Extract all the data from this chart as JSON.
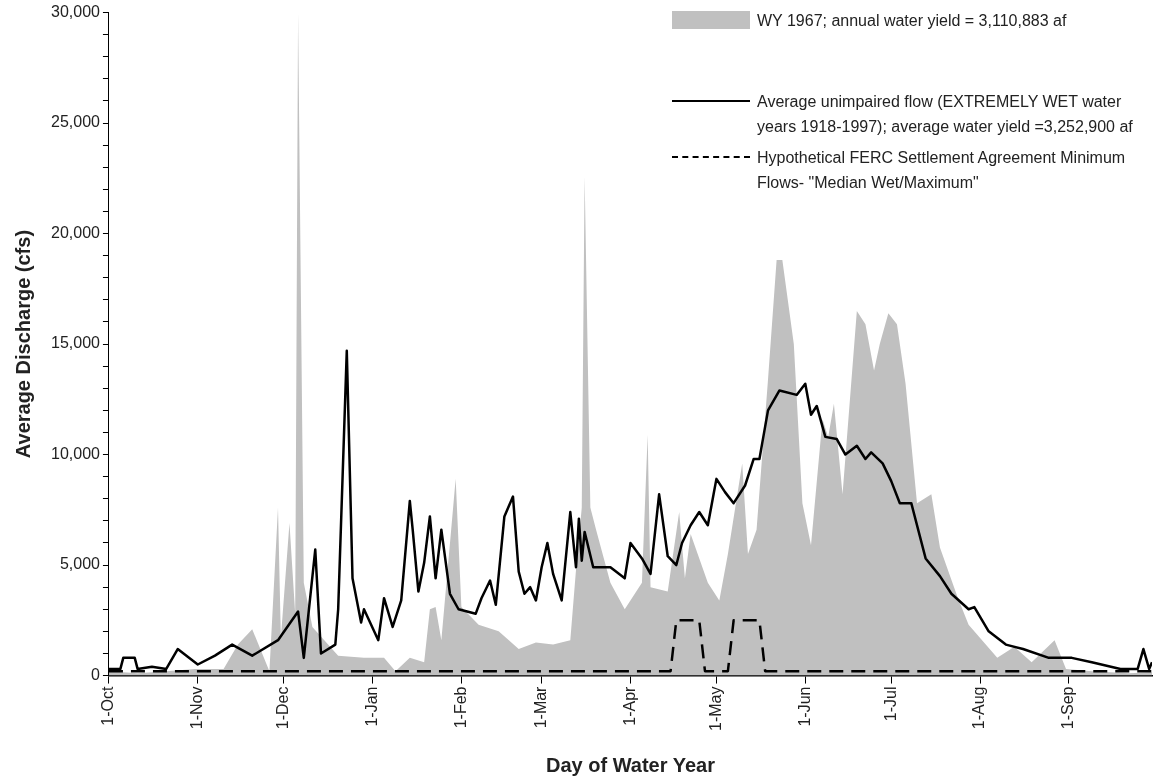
{
  "chart_data": {
    "type": "line",
    "xlabel": "Day of Water Year",
    "ylabel": "Average Discharge (cfs)",
    "xlim": [
      "1966-10-01",
      "1967-09-30"
    ],
    "xticks": [
      {
        "value": "1966-10-01",
        "label": "1-Oct"
      },
      {
        "value": "1966-11-01",
        "label": "1-Nov"
      },
      {
        "value": "1966-12-01",
        "label": "1-Dec"
      },
      {
        "value": "1967-01-01",
        "label": "1-Jan"
      },
      {
        "value": "1967-02-01",
        "label": "1-Feb"
      },
      {
        "value": "1967-03-01",
        "label": "1-Mar"
      },
      {
        "value": "1967-04-01",
        "label": "1-Apr"
      },
      {
        "value": "1967-05-01",
        "label": "1-May"
      },
      {
        "value": "1967-06-01",
        "label": "1-Jun"
      },
      {
        "value": "1967-07-01",
        "label": "1-Jul"
      },
      {
        "value": "1967-08-01",
        "label": "1-Aug"
      },
      {
        "value": "1967-09-01",
        "label": "1-Sep"
      }
    ],
    "ylim": [
      0,
      30000
    ],
    "yticks": [
      {
        "value": 0,
        "label": "0"
      },
      {
        "value": 1000,
        "label": null
      },
      {
        "value": 2000,
        "label": null
      },
      {
        "value": 3000,
        "label": null
      },
      {
        "value": 4000,
        "label": null
      },
      {
        "value": 5000,
        "label": "5,000"
      },
      {
        "value": 6000,
        "label": null
      },
      {
        "value": 7000,
        "label": null
      },
      {
        "value": 8000,
        "label": null
      },
      {
        "value": 9000,
        "label": null
      },
      {
        "value": 10000,
        "label": "10,000"
      },
      {
        "value": 11000,
        "label": null
      },
      {
        "value": 12000,
        "label": null
      },
      {
        "value": 13000,
        "label": null
      },
      {
        "value": 14000,
        "label": null
      },
      {
        "value": 15000,
        "label": "15,000"
      },
      {
        "value": 16000,
        "label": null
      },
      {
        "value": 17000,
        "label": null
      },
      {
        "value": 18000,
        "label": null
      },
      {
        "value": 19000,
        "label": null
      },
      {
        "value": 20000,
        "label": "20,000"
      },
      {
        "value": 21000,
        "label": null
      },
      {
        "value": 22000,
        "label": null
      },
      {
        "value": 23000,
        "label": null
      },
      {
        "value": 24000,
        "label": null
      },
      {
        "value": 25000,
        "label": "25,000"
      },
      {
        "value": 26000,
        "label": null
      },
      {
        "value": 27000,
        "label": null
      },
      {
        "value": 28000,
        "label": null
      },
      {
        "value": 29000,
        "label": null
      },
      {
        "value": 30000,
        "label": "30,000"
      }
    ],
    "grid": false,
    "legend": "top right",
    "marker": "none",
    "series": [
      {
        "name": "WY 1967; annual water yield = 3,110,883 af",
        "type": "area",
        "color": "#c0c0c0",
        "x": [
          "1966-10-01",
          "1966-10-11",
          "1966-10-21",
          "1966-10-31",
          "1966-11-10",
          "1966-11-15",
          "1966-11-20",
          "1966-11-26",
          "1966-11-29",
          "1966-11-30",
          "1966-12-03",
          "1966-12-05",
          "1966-12-06",
          "1966-12-08",
          "1966-12-11",
          "1966-12-20",
          "1966-12-29",
          "1967-01-05",
          "1967-01-09",
          "1967-01-14",
          "1967-01-19",
          "1967-01-21",
          "1967-01-23",
          "1967-01-25",
          "1967-01-30",
          "1967-02-01",
          "1967-02-07",
          "1967-02-14",
          "1967-02-21",
          "1967-02-27",
          "1967-03-05",
          "1967-03-11",
          "1967-03-13",
          "1967-03-15",
          "1967-03-16",
          "1967-03-18",
          "1967-03-20",
          "1967-03-25",
          "1967-03-30",
          "1967-04-05",
          "1967-04-07",
          "1967-04-08",
          "1967-04-14",
          "1967-04-18",
          "1967-04-20",
          "1967-04-22",
          "1967-04-28",
          "1967-05-02",
          "1967-05-05",
          "1967-05-10",
          "1967-05-12",
          "1967-05-15",
          "1967-05-19",
          "1967-05-22",
          "1967-05-24",
          "1967-05-28",
          "1967-05-31",
          "1967-06-03",
          "1967-06-07",
          "1967-06-09",
          "1967-06-11",
          "1967-06-14",
          "1967-06-19",
          "1967-06-22",
          "1967-06-25",
          "1967-06-27",
          "1967-06-30",
          "1967-07-03",
          "1967-07-06",
          "1967-07-10",
          "1967-07-15",
          "1967-07-18",
          "1967-07-24",
          "1967-07-28",
          "1967-08-07",
          "1967-08-13",
          "1967-08-19",
          "1967-08-27",
          "1967-08-31",
          "1967-09-09",
          "1967-09-22",
          "1967-09-30"
        ],
        "values": [
          200,
          100,
          200,
          300,
          300,
          1400,
          2100,
          200,
          7600,
          1700,
          6900,
          2800,
          30000,
          4200,
          2200,
          900,
          800,
          800,
          200,
          800,
          600,
          3000,
          3100,
          1600,
          8900,
          3100,
          2300,
          2000,
          1200,
          1500,
          1400,
          1600,
          4800,
          7600,
          22600,
          7600,
          6600,
          4200,
          3000,
          4200,
          10900,
          4000,
          3800,
          7400,
          4400,
          6400,
          4200,
          3400,
          5500,
          9600,
          5500,
          6600,
          13400,
          18800,
          18800,
          15000,
          7800,
          5900,
          11600,
          10800,
          12300,
          8200,
          16500,
          15900,
          13800,
          15000,
          16400,
          15900,
          13200,
          7800,
          8200,
          5800,
          3600,
          2300,
          800,
          1300,
          600,
          1600,
          300,
          200,
          100,
          150
        ]
      },
      {
        "name": "Average unimpaired flow (EXTREMELY WET water years 1918-1997); average water yield =3,252,900 af",
        "color": "#000000",
        "line_style": "solid",
        "x": [
          "1966-10-01",
          "1966-10-05",
          "1966-10-06",
          "1966-10-10",
          "1966-10-11",
          "1966-10-16",
          "1966-10-21",
          "1966-10-25",
          "1966-11-01",
          "1966-11-07",
          "1966-11-13",
          "1966-11-20",
          "1966-11-29",
          "1966-12-06",
          "1966-12-08",
          "1966-12-12",
          "1966-12-14",
          "1966-12-19",
          "1966-12-20",
          "1966-12-23",
          "1966-12-25",
          "1966-12-28",
          "1966-12-29",
          "1967-01-03",
          "1967-01-05",
          "1967-01-08",
          "1967-01-11",
          "1967-01-14",
          "1967-01-15",
          "1967-01-17",
          "1967-01-19",
          "1967-01-21",
          "1967-01-23",
          "1967-01-25",
          "1967-01-28",
          "1967-01-31",
          "1967-02-06",
          "1967-02-08",
          "1967-02-11",
          "1967-02-13",
          "1967-02-16",
          "1967-02-19",
          "1967-02-21",
          "1967-02-23",
          "1967-02-25",
          "1967-02-27",
          "1967-03-01",
          "1967-03-03",
          "1967-03-05",
          "1967-03-08",
          "1967-03-11",
          "1967-03-13",
          "1967-03-14",
          "1967-03-15",
          "1967-03-16",
          "1967-03-19",
          "1967-03-25",
          "1967-03-30",
          "1967-04-01",
          "1967-04-05",
          "1967-04-08",
          "1967-04-11",
          "1967-04-14",
          "1967-04-17",
          "1967-04-19",
          "1967-04-22",
          "1967-04-25",
          "1967-04-28",
          "1967-04-30",
          "1967-05-01",
          "1967-05-04",
          "1967-05-07",
          "1967-05-11",
          "1967-05-14",
          "1967-05-16",
          "1967-05-19",
          "1967-05-23",
          "1967-05-29",
          "1967-06-01",
          "1967-06-03",
          "1967-06-05",
          "1967-06-08",
          "1967-06-12",
          "1967-06-15",
          "1967-06-19",
          "1967-06-22",
          "1967-06-24",
          "1967-06-28",
          "1967-07-01",
          "1967-07-04",
          "1967-07-08",
          "1967-07-13",
          "1967-07-18",
          "1967-07-22",
          "1967-07-28",
          "1967-07-30",
          "1967-08-04",
          "1967-08-10",
          "1967-08-16",
          "1967-08-25",
          "1967-09-02",
          "1967-09-09",
          "1967-09-19",
          "1967-09-25",
          "1967-09-27",
          "1967-09-29",
          "1967-09-30"
        ],
        "values": [
          300,
          300,
          800,
          800,
          300,
          400,
          300,
          1200,
          500,
          900,
          1400,
          900,
          1600,
          2900,
          800,
          5700,
          1000,
          1400,
          3000,
          14700,
          4400,
          2400,
          3000,
          1600,
          3500,
          2200,
          3400,
          7900,
          6600,
          3800,
          5100,
          7200,
          4400,
          6600,
          3700,
          3000,
          2800,
          3500,
          4300,
          3200,
          7200,
          8100,
          4700,
          3700,
          4000,
          3400,
          4900,
          6000,
          4600,
          3400,
          7400,
          4900,
          7100,
          5200,
          6500,
          4900,
          4900,
          4400,
          6000,
          5300,
          4600,
          8200,
          5400,
          5000,
          6000,
          6800,
          7400,
          6800,
          8200,
          8900,
          8300,
          7800,
          8600,
          9800,
          9800,
          12000,
          12900,
          12700,
          13200,
          11800,
          12200,
          10800,
          10700,
          10000,
          10400,
          9800,
          10100,
          9600,
          8800,
          7800,
          7800,
          5300,
          4500,
          3700,
          3000,
          3100,
          2000,
          1400,
          1200,
          800,
          800,
          600,
          300,
          300,
          1200,
          300,
          600
        ]
      },
      {
        "name": "Hypothetical FERC Settlement Agreement Minimum Flows- \"Median Wet/Maximum\"",
        "color": "#000000",
        "line_style": "dashed",
        "x": [
          "1966-10-01",
          "1967-04-15",
          "1967-04-17",
          "1967-04-25",
          "1967-04-27",
          "1967-05-05",
          "1967-05-07",
          "1967-05-16",
          "1967-05-18",
          "1967-09-30"
        ],
        "values": [
          200,
          200,
          2500,
          2500,
          200,
          200,
          2500,
          2500,
          200,
          200
        ]
      }
    ]
  }
}
